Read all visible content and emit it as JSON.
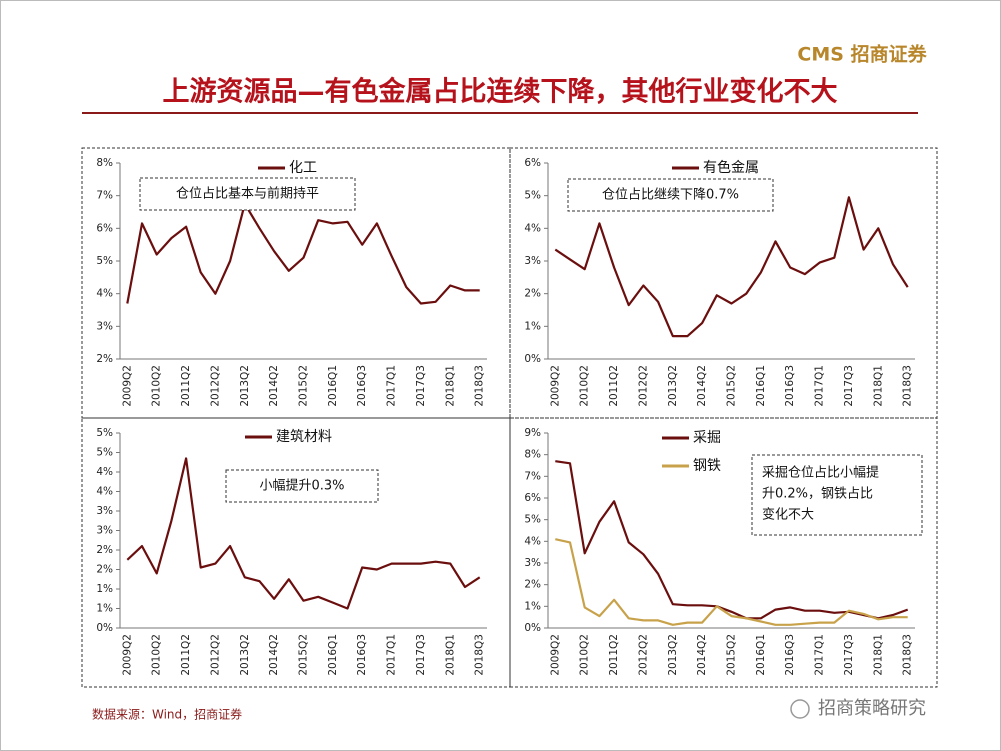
{
  "header": {
    "logo": "CMS 招商证券",
    "title": "上游资源品—有色金属占比连续下降，其他行业变化不大"
  },
  "footer": {
    "source": "数据来源：Wind，招商证券",
    "watermark": "招商策略研究"
  },
  "chart_data": [
    {
      "type": "line",
      "legend": "top",
      "categories": [
        "2009Q2",
        null,
        "2010Q2",
        null,
        "2011Q2",
        null,
        "2012Q2",
        null,
        "2013Q2",
        null,
        "2014Q2",
        null,
        "2015Q2",
        null,
        "2016Q1",
        null,
        "2016Q3",
        null,
        "2017Q1",
        null,
        "2017Q3",
        null,
        "2018Q1",
        null,
        "2018Q3"
      ],
      "series": [
        {
          "name": "化工",
          "color": "#6b0e0e",
          "values": [
            3.7,
            6.15,
            5.2,
            5.7,
            6.05,
            4.65,
            4.0,
            5.0,
            6.75,
            6.0,
            5.3,
            4.7,
            5.1,
            6.25,
            6.15,
            6.2,
            5.5,
            6.15,
            5.15,
            4.2,
            3.7,
            3.75,
            4.25,
            4.1,
            4.1
          ]
        }
      ],
      "ylim": [
        2,
        8
      ],
      "yticks": [
        {
          "value": 2,
          "label": "2%"
        },
        {
          "value": 3,
          "label": "3%"
        },
        {
          "value": 4,
          "label": "4%"
        },
        {
          "value": 5,
          "label": "5%"
        },
        {
          "value": 6,
          "label": "6%"
        },
        {
          "value": 7,
          "label": "7%"
        },
        {
          "value": 8,
          "label": "8%"
        }
      ],
      "annotation": [
        "仓位占比基本与前期持平"
      ]
    },
    {
      "type": "line",
      "legend": "top",
      "categories": [
        "2009Q2",
        null,
        "2010Q2",
        null,
        "2011Q2",
        null,
        "2012Q2",
        null,
        "2013Q2",
        null,
        "2014Q2",
        null,
        "2015Q2",
        null,
        "2016Q1",
        null,
        "2016Q3",
        null,
        "2017Q1",
        null,
        "2017Q3",
        null,
        "2018Q1",
        null,
        "2018Q3"
      ],
      "series": [
        {
          "name": "有色金属",
          "color": "#6b0e0e",
          "values": [
            3.35,
            3.05,
            2.75,
            4.15,
            2.8,
            1.65,
            2.25,
            1.75,
            0.7,
            0.7,
            1.1,
            1.95,
            1.7,
            2.0,
            2.65,
            3.6,
            2.8,
            2.6,
            2.95,
            3.1,
            4.95,
            3.35,
            4.0,
            2.9,
            2.2
          ]
        }
      ],
      "ylim": [
        0,
        6
      ],
      "yticks": [
        {
          "value": 0,
          "label": "0%"
        },
        {
          "value": 1,
          "label": "1%"
        },
        {
          "value": 2,
          "label": "2%"
        },
        {
          "value": 3,
          "label": "3%"
        },
        {
          "value": 4,
          "label": "4%"
        },
        {
          "value": 5,
          "label": "5%"
        },
        {
          "value": 6,
          "label": "6%"
        }
      ],
      "annotation": [
        "仓位占比继续下降0.7%"
      ]
    },
    {
      "type": "line",
      "legend": "top",
      "categories": [
        "2009Q2",
        null,
        "2010Q2",
        null,
        "2011Q2",
        null,
        "2012Q2",
        null,
        "2013Q2",
        null,
        "2014Q2",
        null,
        "2015Q2",
        null,
        "2016Q1",
        null,
        "2016Q3",
        null,
        "2017Q1",
        null,
        "2017Q3",
        null,
        "2018Q1",
        null,
        "2018Q3"
      ],
      "series": [
        {
          "name": "建筑材料",
          "color": "#6b0e0e",
          "values": [
            1.75,
            2.1,
            1.4,
            2.75,
            4.35,
            1.55,
            1.65,
            2.1,
            1.3,
            1.2,
            0.75,
            1.25,
            0.7,
            0.8,
            0.65,
            0.5,
            1.55,
            1.5,
            1.65,
            1.65,
            1.65,
            1.7,
            1.65,
            1.05,
            1.3
          ]
        }
      ],
      "ylim": [
        0,
        5
      ],
      "yticks": [
        {
          "value": 0,
          "label": "0%"
        },
        {
          "value": 0.5,
          "label": "1%"
        },
        {
          "value": 1,
          "label": "1%"
        },
        {
          "value": 1.5,
          "label": "2%"
        },
        {
          "value": 2,
          "label": "2%"
        },
        {
          "value": 2.5,
          "label": "3%"
        },
        {
          "value": 3,
          "label": "3%"
        },
        {
          "value": 3.5,
          "label": "4%"
        },
        {
          "value": 4,
          "label": "4%"
        },
        {
          "value": 4.5,
          "label": "5%"
        },
        {
          "value": 5,
          "label": "5%"
        }
      ],
      "annotation": [
        "小幅提升0.3%"
      ]
    },
    {
      "type": "line",
      "legend": "top-left",
      "categories": [
        "2009Q2",
        null,
        "2010Q2",
        null,
        "2011Q2",
        null,
        "2012Q2",
        null,
        "2013Q2",
        null,
        "2014Q2",
        null,
        "2015Q2",
        null,
        "2016Q1",
        null,
        "2016Q3",
        null,
        "2017Q1",
        null,
        "2017Q3",
        null,
        "2018Q1",
        null,
        "2018Q3"
      ],
      "series": [
        {
          "name": "采掘",
          "color": "#6b0e0e",
          "values": [
            7.7,
            7.6,
            3.45,
            4.9,
            5.85,
            3.95,
            3.4,
            2.5,
            1.1,
            1.05,
            1.05,
            1.0,
            0.75,
            0.45,
            0.45,
            0.85,
            0.95,
            0.8,
            0.8,
            0.7,
            0.75,
            0.6,
            0.45,
            0.6,
            0.85
          ]
        },
        {
          "name": "钢铁",
          "color": "#c8a24a",
          "values": [
            4.1,
            3.95,
            0.95,
            0.55,
            1.3,
            0.45,
            0.35,
            0.35,
            0.15,
            0.25,
            0.25,
            1.0,
            0.55,
            0.45,
            0.3,
            0.15,
            0.15,
            0.2,
            0.25,
            0.25,
            0.8,
            0.65,
            0.4,
            0.5,
            0.5
          ]
        }
      ],
      "ylim": [
        0,
        9
      ],
      "yticks": [
        {
          "value": 0,
          "label": "0%"
        },
        {
          "value": 1,
          "label": "1%"
        },
        {
          "value": 2,
          "label": "2%"
        },
        {
          "value": 3,
          "label": "3%"
        },
        {
          "value": 4,
          "label": "4%"
        },
        {
          "value": 5,
          "label": "5%"
        },
        {
          "value": 6,
          "label": "6%"
        },
        {
          "value": 7,
          "label": "7%"
        },
        {
          "value": 8,
          "label": "8%"
        },
        {
          "value": 9,
          "label": "9%"
        }
      ],
      "annotation": [
        "采掘仓位占比小幅提",
        "升0.2%，钢铁占比",
        "变化不大"
      ]
    }
  ]
}
